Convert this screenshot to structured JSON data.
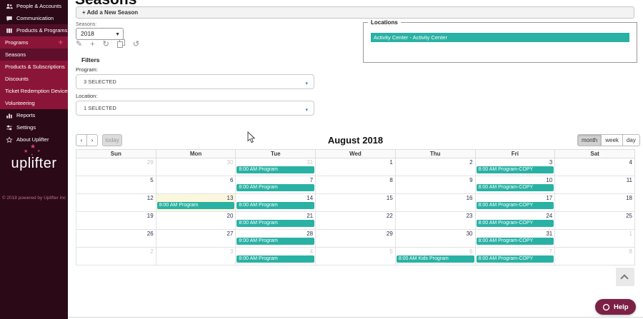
{
  "sidebar": {
    "items": [
      {
        "label": "People & Accounts",
        "icon": "people-icon",
        "variant": "dark"
      },
      {
        "label": "Communication",
        "icon": "chat-icon",
        "variant": "dark"
      },
      {
        "label": "Products & Programs",
        "icon": "products-icon",
        "variant": "section"
      },
      {
        "label": "Programs",
        "variant": "sub",
        "has_add_icon": true
      },
      {
        "label": "Seasons",
        "variant": "sub",
        "active": true
      },
      {
        "label": "Products & Subscriptions",
        "variant": "sub"
      },
      {
        "label": "Discounts",
        "variant": "sub"
      },
      {
        "label": "Ticket Redemption Devices",
        "variant": "sub"
      },
      {
        "label": "Volunteering",
        "variant": "sub"
      },
      {
        "label": "Reports",
        "icon": "reports-icon",
        "variant": "dark"
      },
      {
        "label": "Settings",
        "icon": "settings-icon",
        "variant": "dark"
      },
      {
        "label": "About Uplifter",
        "icon": "about-icon",
        "variant": "dark"
      }
    ],
    "logo_text": "uplifter",
    "copyright": "© 2018 powered by Uplifter Inc"
  },
  "page": {
    "title": "Seasons"
  },
  "toolbar": {
    "add_season_label": "+ Add a New Season"
  },
  "season_selector": {
    "label": "Seasons:",
    "value": "2018",
    "tools": [
      "edit-icon",
      "add-icon",
      "refresh-icon",
      "copy-icon",
      "undo-icon"
    ]
  },
  "locations_panel": {
    "legend": "Locations",
    "items": [
      "Activity Center - Activity Center"
    ]
  },
  "filters": {
    "heading": "Filters",
    "program_label": "Program:",
    "program_value": "3 SELECTED",
    "location_label": "Location:",
    "location_value": "1 SELECTED"
  },
  "calendar": {
    "title": "August 2018",
    "today_label": "today",
    "views": [
      {
        "label": "month",
        "active": true
      },
      {
        "label": "week",
        "active": false
      },
      {
        "label": "day",
        "active": false
      }
    ],
    "day_headers": [
      "Sun",
      "Mon",
      "Tue",
      "Wed",
      "Thu",
      "Fri",
      "Sat"
    ],
    "weeks": [
      [
        {
          "day": 29,
          "outside": true
        },
        {
          "day": 30,
          "outside": true
        },
        {
          "day": 31,
          "outside": true,
          "events": [
            "8:00 AM Program"
          ]
        },
        {
          "day": 1
        },
        {
          "day": 2
        },
        {
          "day": 3,
          "events": [
            "8:00 AM Program-COPY"
          ]
        },
        {
          "day": 4
        }
      ],
      [
        {
          "day": 5
        },
        {
          "day": 6
        },
        {
          "day": 7,
          "events": [
            "8:00 AM Program"
          ]
        },
        {
          "day": 8
        },
        {
          "day": 9
        },
        {
          "day": 10,
          "events": [
            "8:00 AM Program-COPY"
          ]
        },
        {
          "day": 11
        }
      ],
      [
        {
          "day": 12
        },
        {
          "day": 13,
          "today": true,
          "events": [
            "8:00 AM Program"
          ]
        },
        {
          "day": 14,
          "events": [
            "8:00 AM Program"
          ]
        },
        {
          "day": 15
        },
        {
          "day": 16
        },
        {
          "day": 17,
          "events": [
            "8:00 AM Program-COPY"
          ]
        },
        {
          "day": 18
        }
      ],
      [
        {
          "day": 19
        },
        {
          "day": 20
        },
        {
          "day": 21,
          "events": [
            "8:00 AM Program"
          ]
        },
        {
          "day": 22
        },
        {
          "day": 23
        },
        {
          "day": 24,
          "events": [
            "8:00 AM Program-COPY"
          ]
        },
        {
          "day": 25
        }
      ],
      [
        {
          "day": 26
        },
        {
          "day": 27
        },
        {
          "day": 28,
          "events": [
            "8:00 AM Program"
          ]
        },
        {
          "day": 29
        },
        {
          "day": 30
        },
        {
          "day": 31,
          "events": [
            "8:00 AM Program-COPY"
          ]
        },
        {
          "day": 1,
          "outside": true
        }
      ],
      [
        {
          "day": 2,
          "outside": true
        },
        {
          "day": 3,
          "outside": true
        },
        {
          "day": 4,
          "outside": true,
          "events": [
            "8:00 AM Program"
          ]
        },
        {
          "day": 5,
          "outside": true
        },
        {
          "day": 6,
          "outside": true,
          "events": [
            "8:00 AM Kids Program"
          ]
        },
        {
          "day": 7,
          "outside": true,
          "events": [
            "8:00 AM Program-COPY"
          ]
        },
        {
          "day": 8,
          "outside": true
        }
      ]
    ]
  },
  "help": {
    "label": "Help"
  },
  "colors": {
    "accent_teal": "#29b2a4",
    "sidebar_dark": "#2b0917",
    "sidebar_crimson": "#8a1538",
    "sidebar_active": "#5e0f2b",
    "today_cell": "#fbf7dd",
    "help_maroon": "#7b2146",
    "logo_pink": "#d6407a"
  }
}
